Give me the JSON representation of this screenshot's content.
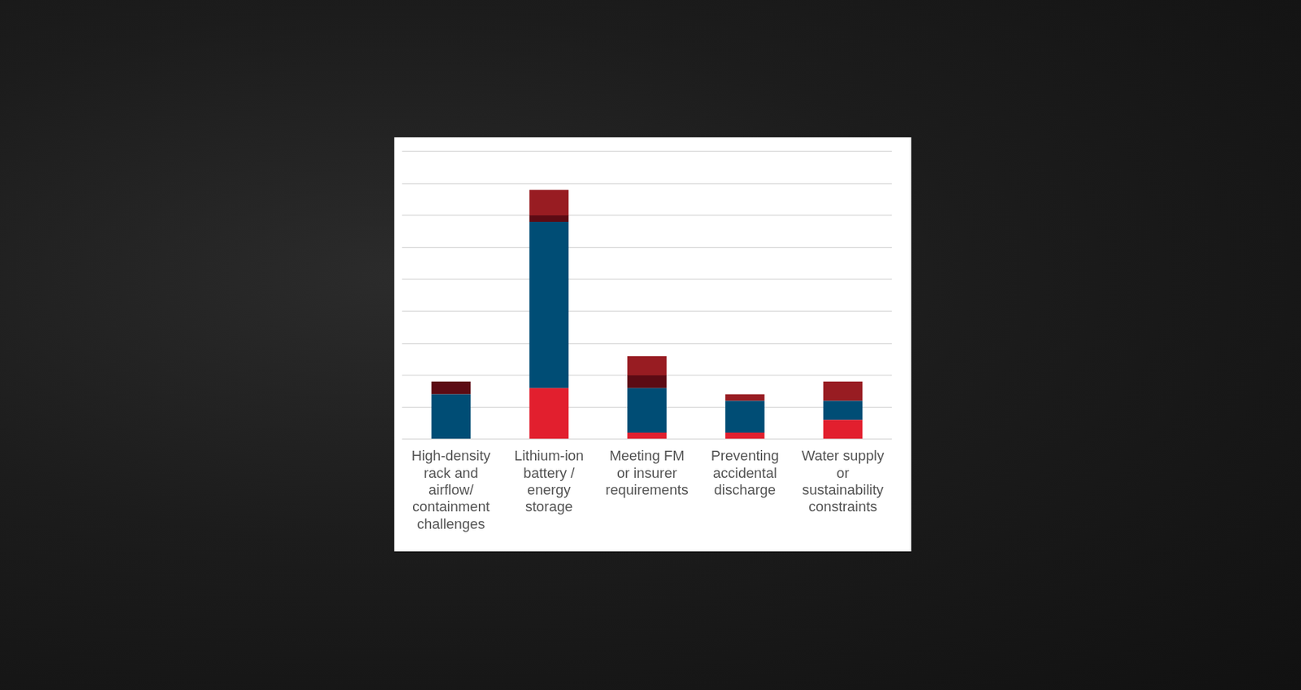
{
  "chart_data": {
    "type": "bar",
    "categories": [
      [
        "High-density",
        "rack and",
        "airflow/",
        "containment",
        "challenges"
      ],
      [
        "Lithium-ion",
        "battery /",
        "energy",
        "storage"
      ],
      [
        "Meeting FM",
        "or insurer",
        "requirements"
      ],
      [
        "Preventing",
        "accidental",
        "discharge"
      ],
      [
        "Water supply",
        "or",
        "sustainability",
        "constraints"
      ]
    ],
    "series": [
      {
        "color": "#e21f2e",
        "values": [
          0,
          1.6,
          0.2,
          0.2,
          0.6
        ]
      },
      {
        "color": "#004d75",
        "values": [
          1.4,
          5.2,
          1.4,
          1.0,
          0.6
        ]
      },
      {
        "color": "#5c0b14",
        "values": [
          0.4,
          0.2,
          0.4,
          0,
          0
        ]
      },
      {
        "color": "#981c22",
        "values": [
          0,
          0.8,
          0.6,
          0.2,
          0.6
        ]
      }
    ],
    "stacked": true,
    "ylim": [
      0,
      9
    ],
    "yticks": [
      0,
      1,
      2,
      3,
      4,
      5,
      6,
      7,
      8,
      9
    ],
    "grid": true,
    "tick_labels": "x"
  }
}
